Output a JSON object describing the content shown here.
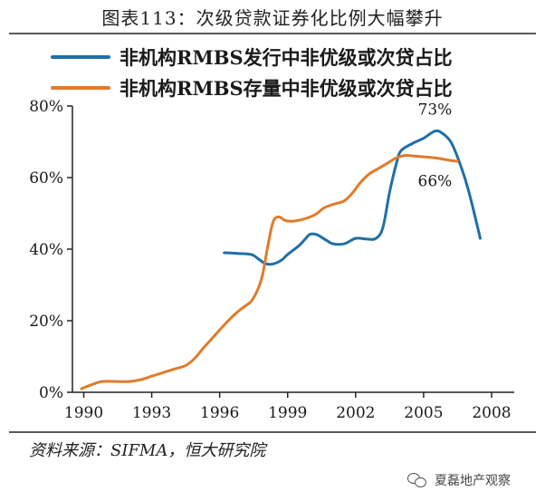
{
  "figure": {
    "title": "图表113：次级贷款证券化比例大幅攀升",
    "source": "资料来源：SIFMA，恒大研究院",
    "watermark": "夏磊地产观察",
    "watermark_icon": "wechat-icon"
  },
  "chart_data": {
    "type": "line",
    "title": "",
    "xlabel": "",
    "ylabel": "",
    "xlim": [
      1989.5,
      2009
    ],
    "ylim": [
      0,
      80
    ],
    "x_ticks": [
      1990,
      1993,
      1996,
      1999,
      2002,
      2005,
      2008
    ],
    "x_tick_labels": [
      "1990",
      "1993",
      "1996",
      "1999",
      "2002",
      "2005",
      "2008"
    ],
    "y_ticks": [
      0,
      20,
      40,
      60,
      80
    ],
    "y_tick_labels": [
      "0%",
      "20%",
      "40%",
      "60%",
      "80%"
    ],
    "grid": false,
    "legend_position": "top-left",
    "series": [
      {
        "name": "非机构RMBS发行中非优级或次贷占比",
        "color": "#1f6fa8",
        "points": [
          [
            1996.2,
            39
          ],
          [
            1996.8,
            38.8
          ],
          [
            1997.4,
            38.5
          ],
          [
            1997.7,
            37.3
          ],
          [
            1998,
            36
          ],
          [
            1998.3,
            35.8
          ],
          [
            1998.7,
            36.8
          ],
          [
            1999,
            38.5
          ],
          [
            1999.5,
            41
          ],
          [
            1999.8,
            43
          ],
          [
            2000,
            44.2
          ],
          [
            2000.3,
            44
          ],
          [
            2000.7,
            42.5
          ],
          [
            2001,
            41.5
          ],
          [
            2001.5,
            41.5
          ],
          [
            2002,
            43
          ],
          [
            2002.5,
            42.8
          ],
          [
            2002.9,
            43
          ],
          [
            2003.2,
            46
          ],
          [
            2003.5,
            56
          ],
          [
            2003.8,
            64
          ],
          [
            2004,
            67.5
          ],
          [
            2004.5,
            69.5
          ],
          [
            2005,
            71
          ],
          [
            2005.5,
            73
          ],
          [
            2005.8,
            72.5
          ],
          [
            2006.2,
            70
          ],
          [
            2006.6,
            64
          ],
          [
            2007,
            56
          ],
          [
            2007.5,
            43
          ]
        ]
      },
      {
        "name": "非机构RMBS存量中非优级或次贷占比",
        "color": "#e07b2a",
        "points": [
          [
            1989.9,
            1
          ],
          [
            1990.3,
            2
          ],
          [
            1990.8,
            3
          ],
          [
            1991.5,
            3
          ],
          [
            1992,
            3
          ],
          [
            1992.5,
            3.5
          ],
          [
            1993,
            4.5
          ],
          [
            1993.5,
            5.5
          ],
          [
            1994,
            6.5
          ],
          [
            1994.5,
            7.5
          ],
          [
            1994.9,
            9.5
          ],
          [
            1995.3,
            12.5
          ],
          [
            1995.8,
            16
          ],
          [
            1996.3,
            19.5
          ],
          [
            1996.7,
            22
          ],
          [
            1997.1,
            24
          ],
          [
            1997.4,
            25.5
          ],
          [
            1997.7,
            29
          ],
          [
            1997.9,
            33
          ],
          [
            1998.1,
            40
          ],
          [
            1998.35,
            47.5
          ],
          [
            1998.6,
            49
          ],
          [
            1998.9,
            48
          ],
          [
            1999.2,
            47.8
          ],
          [
            1999.6,
            48.2
          ],
          [
            2000,
            49
          ],
          [
            2000.3,
            50
          ],
          [
            2000.6,
            51.5
          ],
          [
            2001,
            52.5
          ],
          [
            2001.5,
            53.5
          ],
          [
            2001.9,
            56
          ],
          [
            2002.2,
            58.5
          ],
          [
            2002.6,
            61
          ],
          [
            2003,
            62.5
          ],
          [
            2003.4,
            64
          ],
          [
            2003.8,
            65.5
          ],
          [
            2004.2,
            66.2
          ],
          [
            2004.6,
            66
          ],
          [
            2005,
            65.8
          ],
          [
            2005.5,
            65.5
          ],
          [
            2006,
            65
          ],
          [
            2006.5,
            64.5
          ]
        ]
      }
    ],
    "annotations": [
      {
        "text": "73%",
        "x": 2005.5,
        "y": 73,
        "series": 0
      },
      {
        "text": "66%",
        "x": 2005.5,
        "y": 66,
        "series": 1
      }
    ]
  }
}
